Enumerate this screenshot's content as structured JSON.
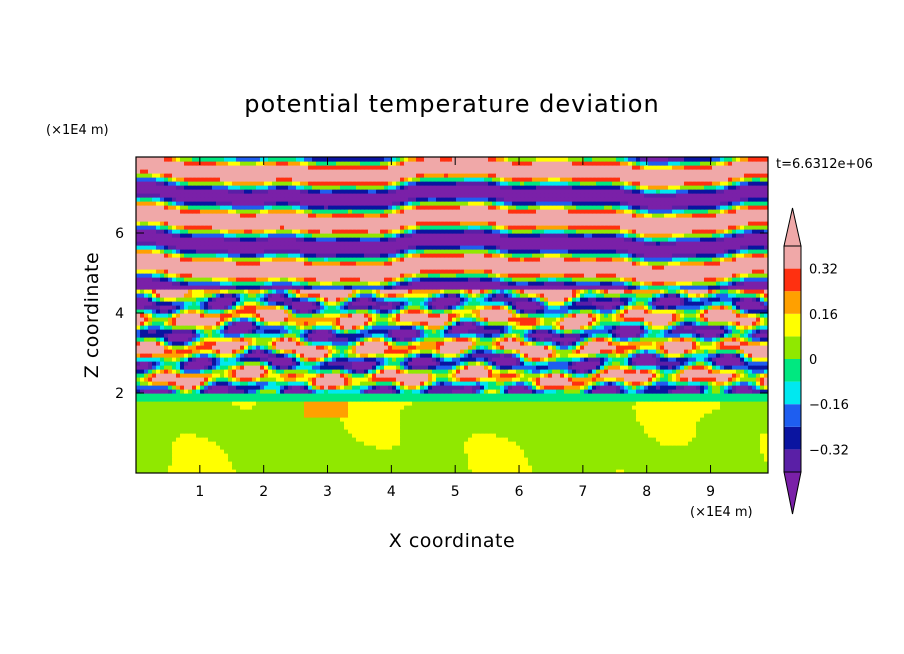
{
  "chart_data": {
    "type": "heatmap",
    "title": "potential temperature deviation",
    "xlabel": "X coordinate",
    "ylabel": "Z coordinate",
    "x_unit": "(×1E4 m)",
    "y_unit": "(×1E4 m)",
    "xlim": [
      0,
      9.9
    ],
    "ylim": [
      0,
      7.9
    ],
    "x_ticks": [
      "1",
      "2",
      "3",
      "4",
      "5",
      "6",
      "7",
      "8",
      "9"
    ],
    "y_ticks": [
      "2",
      "4",
      "6"
    ],
    "time_label": "t=6.6312e+06",
    "colorbar": {
      "labels": [
        "0.32",
        "0.16",
        "0",
        "−0.16",
        "−0.32"
      ],
      "label_values": [
        0.32,
        0.16,
        0,
        -0.16,
        -0.32
      ],
      "levels": [
        -0.4,
        -0.32,
        -0.24,
        -0.16,
        -0.08,
        0,
        0.08,
        0.16,
        0.24,
        0.32,
        0.4
      ],
      "colors": [
        "#5a1fa6",
        "#0a14a0",
        "#1e5ef0",
        "#00e8f0",
        "#00e880",
        "#90e800",
        "#ffff00",
        "#ffa000",
        "#ff3010",
        "#f0a8a8"
      ],
      "under_color": "#7a20a8",
      "over_color": "#f0a8a8"
    },
    "layers": [
      {
        "z_range": [
          0,
          2
        ],
        "pattern": "mixed layer",
        "dominant_values": [
          0.0,
          0.08
        ]
      },
      {
        "z_range": [
          2,
          4.5
        ],
        "pattern": "turbulent layered",
        "dominant_values": [
          -0.4,
          0.4
        ]
      },
      {
        "z_range": [
          4.5,
          7.9
        ],
        "pattern": "alternating bands",
        "dominant_values": [
          -0.4,
          0.4
        ]
      }
    ]
  }
}
